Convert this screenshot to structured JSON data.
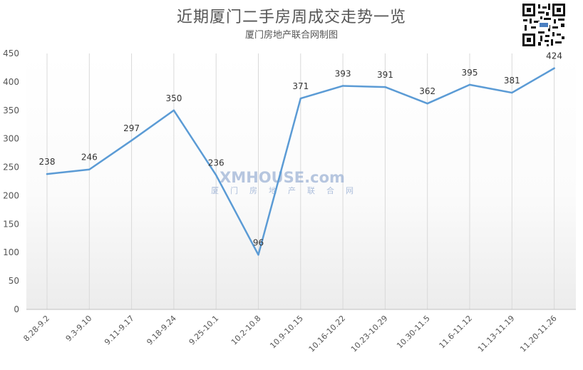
{
  "title": "近期厦门二手房周成交走势一览",
  "subtitle": "厦门房地产联合网制图",
  "watermark": {
    "brand": "XMHOUSE.com",
    "cn": "厦门房地产联合网"
  },
  "qr_code": {
    "icon": "qr-code-icon"
  },
  "colors": {
    "line": "#5b9bd5",
    "grid": "#d9d9d9",
    "text": "#555555"
  },
  "chart_data": {
    "type": "line",
    "title": "近期厦门二手房周成交走势一览",
    "subtitle": "厦门房地产联合网制图",
    "xlabel": "",
    "ylabel": "",
    "ylim": [
      0,
      450
    ],
    "yticks": [
      0,
      50,
      100,
      150,
      200,
      250,
      300,
      350,
      400,
      450
    ],
    "grid": "vertical",
    "categories": [
      "8.28-9.2",
      "9.3-9.10",
      "9.11-9.17",
      "9.18-9.24",
      "9.25-10.1",
      "10.2-10.8",
      "10.9-10.15",
      "10.16-10.22",
      "10.23-10.29",
      "10.30-11.5",
      "11.6-11.12",
      "11.13-11.19",
      "11.20-11.26"
    ],
    "series": [
      {
        "values": [
          238,
          246,
          297,
          350,
          236,
          96,
          371,
          393,
          391,
          362,
          395,
          381,
          424
        ]
      }
    ]
  }
}
